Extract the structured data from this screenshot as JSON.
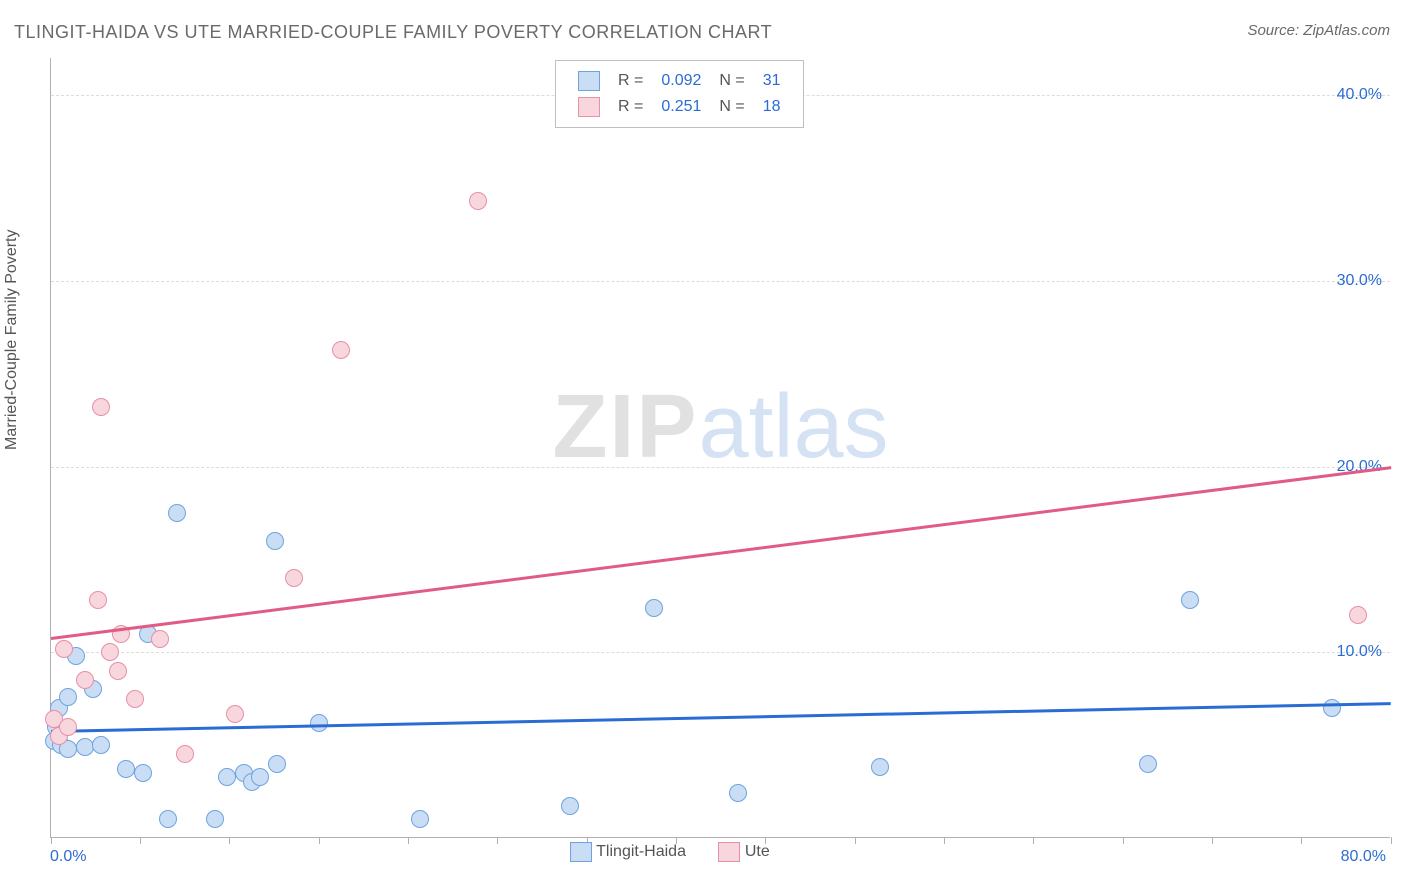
{
  "title": "TLINGIT-HAIDA VS UTE MARRIED-COUPLE FAMILY POVERTY CORRELATION CHART",
  "source": "Source: ZipAtlas.com",
  "ylabel": "Married-Couple Family Poverty",
  "watermark_zip": "ZIP",
  "watermark_atlas": "atlas",
  "chart": {
    "type": "scatter",
    "xlim": [
      0,
      80
    ],
    "ylim": [
      0,
      42
    ],
    "x_min_label": "0.0%",
    "x_max_label": "80.0%",
    "y_ticks": [
      10,
      20,
      30,
      40
    ],
    "y_tick_labels": [
      "10.0%",
      "20.0%",
      "30.0%",
      "40.0%"
    ],
    "x_tick_positions": [
      0,
      5.3,
      10.6,
      16,
      21.3,
      26.6,
      32,
      37.3,
      42.6,
      48,
      53.3,
      58.6,
      64,
      69.3,
      74.6,
      80
    ],
    "grid_color": "#dcdcdc",
    "axis_color": "#b0b0b0",
    "background_color": "#ffffff",
    "marker_radius": 9,
    "marker_border_width": 1.5,
    "series": [
      {
        "name": "Tlingit-Haida",
        "fill": "#c9ddf4",
        "stroke": "#6fa3e0",
        "R_label": "R =",
        "R": "0.092",
        "N_label": "N =",
        "N": "31",
        "trend": {
          "x1": 0,
          "y1": 5.8,
          "x2": 80,
          "y2": 7.3,
          "color": "#2b6cd4",
          "width": 2.5
        },
        "points": [
          [
            0.2,
            5.2
          ],
          [
            0.3,
            6.0
          ],
          [
            0.5,
            7.0
          ],
          [
            0.6,
            5.0
          ],
          [
            1.0,
            4.8
          ],
          [
            1.0,
            7.6
          ],
          [
            1.5,
            9.8
          ],
          [
            2.0,
            4.9
          ],
          [
            2.5,
            8.0
          ],
          [
            3.0,
            5.0
          ],
          [
            4.5,
            3.7
          ],
          [
            5.5,
            3.5
          ],
          [
            5.8,
            11.0
          ],
          [
            7.0,
            1.0
          ],
          [
            7.5,
            17.5
          ],
          [
            9.8,
            1.0
          ],
          [
            10.5,
            3.3
          ],
          [
            11.5,
            3.5
          ],
          [
            12.0,
            3.0
          ],
          [
            12.5,
            3.3
          ],
          [
            13.4,
            16.0
          ],
          [
            13.5,
            4.0
          ],
          [
            16.0,
            6.2
          ],
          [
            22.0,
            1.0
          ],
          [
            31.0,
            1.7
          ],
          [
            36.0,
            12.4
          ],
          [
            41.0,
            2.4
          ],
          [
            49.5,
            3.8
          ],
          [
            65.5,
            4.0
          ],
          [
            68.0,
            12.8
          ],
          [
            76.5,
            7.0
          ]
        ]
      },
      {
        "name": "Ute",
        "fill": "#f7d6de",
        "stroke": "#e890a7",
        "R_label": "R =",
        "R": "0.251",
        "N_label": "N =",
        "N": "18",
        "trend": {
          "x1": 0,
          "y1": 10.8,
          "x2": 80,
          "y2": 20.0,
          "color": "#e05b86",
          "width": 2.5
        },
        "points": [
          [
            0.2,
            6.4
          ],
          [
            0.5,
            5.5
          ],
          [
            0.8,
            10.2
          ],
          [
            1.0,
            6.0
          ],
          [
            2.0,
            8.5
          ],
          [
            2.8,
            12.8
          ],
          [
            3.0,
            23.2
          ],
          [
            3.5,
            10.0
          ],
          [
            4.0,
            9.0
          ],
          [
            4.2,
            11.0
          ],
          [
            5.0,
            7.5
          ],
          [
            6.5,
            10.7
          ],
          [
            8.0,
            4.5
          ],
          [
            11.0,
            6.7
          ],
          [
            14.5,
            14.0
          ],
          [
            17.3,
            26.3
          ],
          [
            25.5,
            34.3
          ],
          [
            78.0,
            12.0
          ]
        ]
      }
    ]
  },
  "legend_bottom_label_a": "Tlingit-Haida",
  "legend_bottom_label_b": "Ute"
}
